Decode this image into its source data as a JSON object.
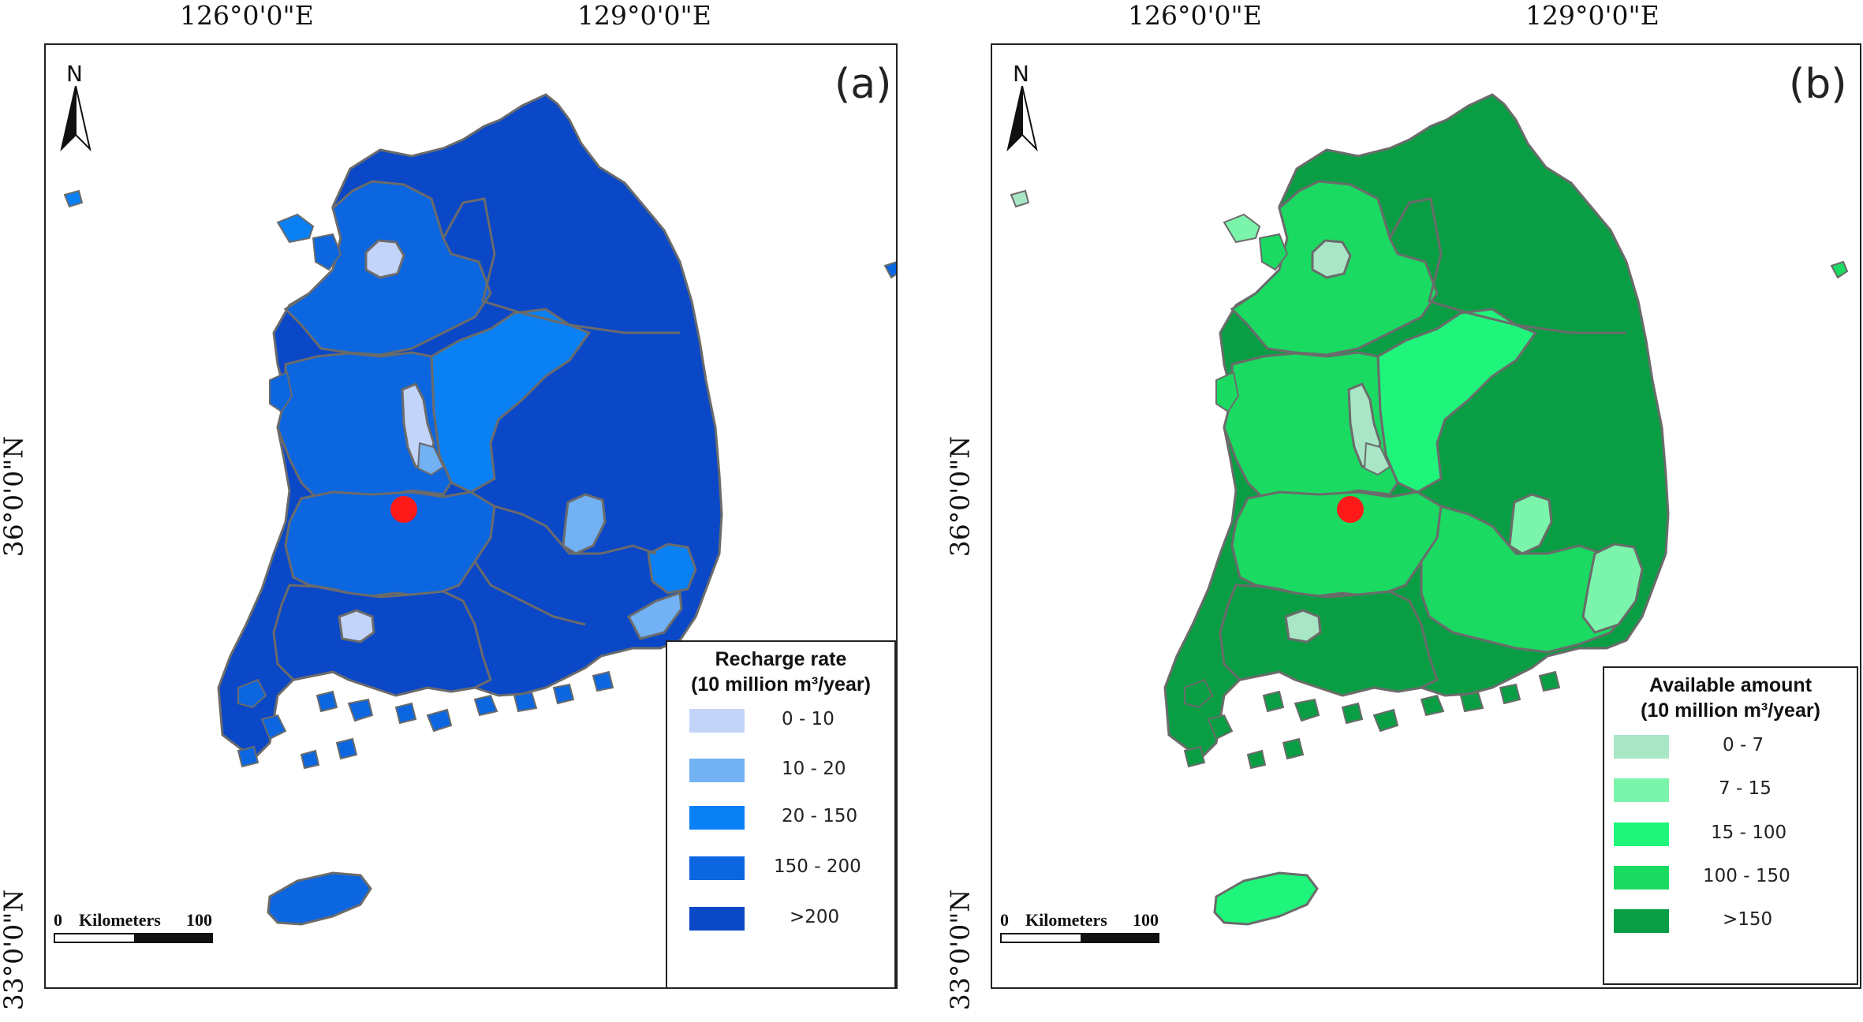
{
  "colors": {
    "boundary": "#6b6b6b",
    "marker": "#ff1a1a"
  },
  "panel_a": {
    "tag": "(a)",
    "lon_labels": [
      "126°0'0\"E",
      "129°0'0\"E"
    ],
    "lat_labels": [
      "36°0'0\"N",
      "33°0'0\"N"
    ],
    "north": "N",
    "scale": {
      "zero": "0",
      "unit": "Kilometers",
      "max": "100"
    },
    "legend": {
      "title_line1": "Recharge rate",
      "title_line2": "(10 million m³/year)",
      "classes": [
        {
          "label": "0 - 10",
          "color": "#c3d4fb"
        },
        {
          "label": "10 - 20",
          "color": "#72b1f3"
        },
        {
          "label": "20 - 150",
          "color": "#0a80f5"
        },
        {
          "label": "150 - 200",
          "color": "#0b66e0"
        },
        {
          "label": ">200",
          "color": "#0a48c7"
        }
      ]
    }
  },
  "panel_b": {
    "tag": "(b)",
    "lon_labels": [
      "126°0'0\"E",
      "129°0'0\"E"
    ],
    "lat_labels": [
      "36°0'0\"N",
      "33°0'0\"N"
    ],
    "north": "N",
    "scale": {
      "zero": "0",
      "unit": "Kilometers",
      "max": "100"
    },
    "legend": {
      "title_line1": "Available amount",
      "title_line2": "(10 million m³/year)",
      "classes": [
        {
          "label": "0 - 7",
          "color": "#a9e6c6"
        },
        {
          "label": "7 - 15",
          "color": "#7cf5ac"
        },
        {
          "label": "15 - 100",
          "color": "#1ff57a"
        },
        {
          "label": "100 - 150",
          "color": "#1ada62"
        },
        {
          "label": ">150",
          "color": "#099e44"
        }
      ]
    }
  }
}
